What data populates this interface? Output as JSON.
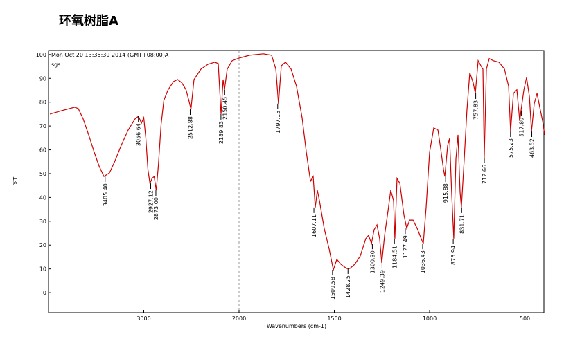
{
  "chart_data": {
    "type": "line",
    "title": "环氧树脂A",
    "header": "Mon Oct 20 13:35:39 2014 (GMT+08:00)A",
    "sample": "sgs",
    "x_label": "Wavenumbers (cm-1)",
    "y_label": "%T",
    "color": "#cc0000",
    "xlim": [
      4000,
      400
    ],
    "x_break": 2000,
    "xticks": [
      3000,
      2000,
      1500,
      1000,
      500
    ],
    "ylim": [
      -8.4,
      101.7
    ],
    "yticks": [
      0,
      10,
      20,
      30,
      40,
      50,
      60,
      70,
      80,
      90,
      100
    ],
    "x": [
      3985,
      3855,
      3724,
      3687,
      3636,
      3578,
      3520,
      3469,
      3418,
      3360,
      3309,
      3236,
      3164,
      3091,
      3055,
      3025,
      3000,
      2978,
      2956,
      2935,
      2913,
      2891,
      2869,
      2847,
      2818,
      2789,
      2745,
      2687,
      2644,
      2600,
      2556,
      2527,
      2505,
      2473,
      2400,
      2327,
      2255,
      2218,
      2189,
      2167,
      2153,
      2124,
      2073,
      2000,
      1945,
      1873,
      1829,
      1807,
      1793,
      1778,
      1756,
      1727,
      1698,
      1669,
      1647,
      1625,
      1611,
      1600,
      1589,
      1578,
      1553,
      1527,
      1505,
      1487,
      1465,
      1436,
      1418,
      1393,
      1364,
      1335,
      1320,
      1305,
      1291,
      1276,
      1262,
      1251,
      1236,
      1218,
      1204,
      1189,
      1182,
      1171,
      1156,
      1135,
      1120,
      1105,
      1087,
      1065,
      1044,
      1033,
      1018,
      1000,
      978,
      956,
      942,
      927,
      920,
      905,
      895,
      884,
      873,
      862,
      851,
      840,
      833,
      818,
      804,
      789,
      771,
      760,
      745,
      731,
      720,
      713,
      702,
      687,
      665,
      636,
      607,
      585,
      575,
      560,
      542,
      527,
      520,
      505,
      491,
      476,
      465,
      451,
      436,
      422,
      407,
      396
    ],
    "values": [
      75.0,
      76.5,
      77.9,
      77.3,
      73.0,
      66.3,
      59.0,
      53.2,
      48.8,
      50.3,
      54.7,
      61.9,
      68.3,
      73.0,
      74.1,
      71.2,
      73.5,
      64.8,
      51.7,
      45.9,
      48.0,
      48.8,
      43.0,
      53.2,
      70.6,
      80.8,
      85.2,
      88.7,
      89.5,
      88.1,
      85.2,
      80.8,
      77.0,
      89.5,
      93.9,
      95.9,
      96.8,
      96.2,
      75.0,
      89.5,
      85.2,
      93.9,
      97.4,
      98.5,
      99.7,
      100.3,
      99.7,
      93.9,
      79.4,
      95.3,
      96.8,
      93.9,
      86.6,
      73.5,
      59.0,
      46.8,
      48.8,
      35.8,
      43.0,
      38.7,
      27.0,
      18.3,
      9.6,
      14.0,
      11.9,
      10.2,
      10.2,
      11.9,
      15.4,
      22.7,
      24.1,
      20.6,
      26.5,
      28.5,
      22.7,
      12.5,
      24.1,
      34.3,
      43.0,
      38.7,
      22.7,
      48.0,
      45.9,
      32.8,
      27.0,
      30.5,
      30.5,
      27.0,
      22.7,
      20.6,
      35.8,
      59.0,
      69.2,
      68.3,
      60.5,
      51.7,
      48.8,
      61.9,
      64.8,
      41.6,
      22.7,
      56.1,
      66.3,
      42.2,
      35.8,
      56.1,
      76.5,
      92.4,
      88.1,
      83.7,
      97.4,
      95.3,
      93.9,
      56.7,
      93.9,
      98.3,
      97.4,
      96.8,
      93.9,
      86.6,
      67.7,
      83.7,
      85.2,
      72.1,
      76.5,
      85.2,
      90.4,
      82.3,
      67.7,
      79.4,
      83.7,
      77.9,
      72.1,
      66.3
    ],
    "peaks": {
      "x": [
        3405.4,
        3056.64,
        2927.12,
        2873.0,
        2512.88,
        2189.83,
        2150.45,
        1797.15,
        1607.11,
        1509.58,
        1428.25,
        1300.3,
        1249.39,
        1184.51,
        1127.49,
        1036.43,
        915.88,
        875.94,
        831.71,
        757.83,
        712.66,
        575.23,
        517.8,
        463.52
      ],
      "values": [
        48.8,
        74.1,
        45.9,
        43.0,
        77.0,
        75.0,
        85.2,
        79.4,
        35.8,
        9.6,
        10.2,
        20.6,
        12.5,
        22.7,
        27.0,
        20.6,
        48.8,
        22.7,
        35.8,
        83.7,
        56.7,
        67.7,
        76.5,
        67.7
      ],
      "value_labels": [
        "3405.40",
        "3056.64",
        "2927.12",
        "2873.00",
        "2512.88",
        "2189.83",
        "2150.45",
        "1797.15",
        "1607.11",
        "1509.58",
        "1428.25",
        "1300.30",
        "1249.39",
        "1184.51",
        "1127.49",
        "1036.43",
        "915.88",
        "875.94",
        "831.71",
        "757.83",
        "712.66",
        "575.23",
        "517.80",
        "463.52"
      ]
    }
  }
}
